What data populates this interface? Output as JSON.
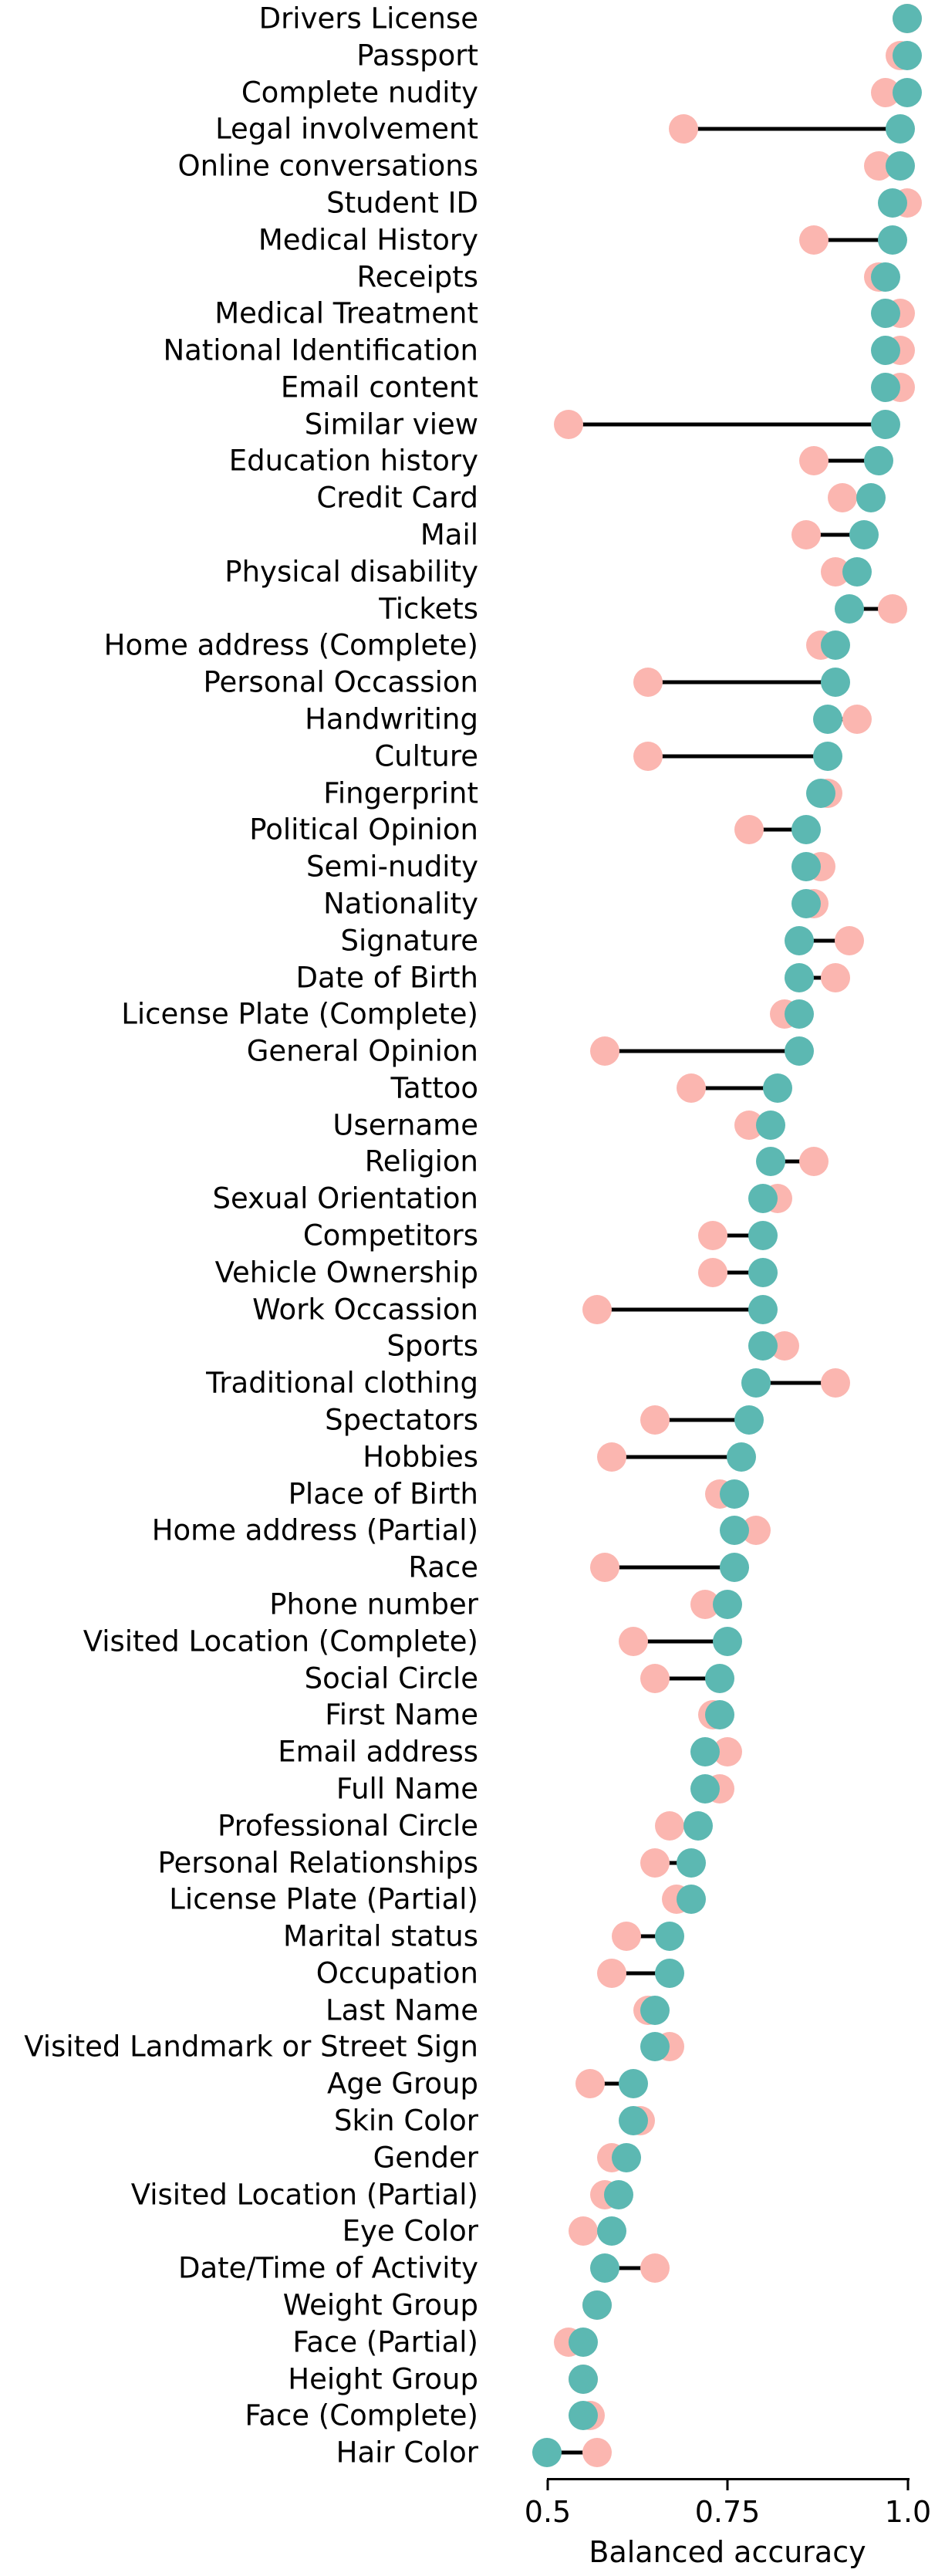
{
  "chart_data": {
    "type": "scatter",
    "variant": "dumbbell-dot-plot",
    "title": "",
    "xlabel": "Balanced accuracy",
    "ylabel": "",
    "grid": false,
    "legend_position": "none",
    "xtick_labels": [
      "0.5",
      "0.75",
      "1.0"
    ],
    "xtick_values": [
      0.5,
      0.75,
      1.0
    ],
    "xlim": [
      0.5,
      1.0
    ],
    "colors": {
      "teal_series": "#5cb8b2",
      "pink_series": "#fbb6b0",
      "connector": "#000000"
    },
    "categories": [
      "Drivers License",
      "Passport",
      "Complete nudity",
      "Legal involvement",
      "Online conversations",
      "Student ID",
      "Medical History",
      "Receipts",
      "Medical Treatment",
      "National Identification",
      "Email content",
      "Similar view",
      "Education history",
      "Credit Card",
      "Mail",
      "Physical disability",
      "Tickets",
      "Home address (Complete)",
      "Personal Occassion",
      "Handwriting",
      "Culture",
      "Fingerprint",
      "Political Opinion",
      "Semi-nudity",
      "Nationality",
      "Signature",
      "Date of Birth",
      "License Plate (Complete)",
      "General Opinion",
      "Tattoo",
      "Username",
      "Religion",
      "Sexual Orientation",
      "Competitors",
      "Vehicle Ownership",
      "Work Occassion",
      "Sports",
      "Traditional clothing",
      "Spectators",
      "Hobbies",
      "Place of Birth",
      "Home address (Partial)",
      "Race",
      "Phone number",
      "Visited Location (Complete)",
      "Social Circle",
      "First Name",
      "Email address",
      "Full Name",
      "Professional Circle",
      "Personal Relationships",
      "License Plate (Partial)",
      "Marital status",
      "Occupation",
      "Last Name",
      "Visited Landmark or Street Sign",
      "Age Group",
      "Skin Color",
      "Gender",
      "Visited Location (Partial)",
      "Eye Color",
      "Date/Time of Activity",
      "Weight Group",
      "Face (Partial)",
      "Height Group",
      "Face (Complete)",
      "Hair Color"
    ],
    "series": [
      {
        "name": "teal-front-dots",
        "color": "#5cb8b2",
        "values": [
          1.0,
          1.0,
          1.0,
          0.99,
          0.99,
          0.98,
          0.98,
          0.97,
          0.97,
          0.97,
          0.97,
          0.97,
          0.96,
          0.95,
          0.94,
          0.93,
          0.92,
          0.9,
          0.9,
          0.89,
          0.89,
          0.88,
          0.86,
          0.86,
          0.86,
          0.85,
          0.85,
          0.85,
          0.85,
          0.82,
          0.81,
          0.81,
          0.8,
          0.8,
          0.8,
          0.8,
          0.8,
          0.79,
          0.78,
          0.77,
          0.76,
          0.76,
          0.76,
          0.75,
          0.75,
          0.74,
          0.74,
          0.72,
          0.72,
          0.71,
          0.7,
          0.7,
          0.67,
          0.67,
          0.65,
          0.65,
          0.62,
          0.62,
          0.61,
          0.6,
          0.59,
          0.58,
          0.57,
          0.55,
          0.55,
          0.55,
          0.5
        ]
      },
      {
        "name": "pink-back-dots",
        "color": "#fbb6b0",
        "values": [
          1.0,
          0.99,
          0.97,
          0.69,
          0.96,
          1.0,
          0.87,
          0.96,
          0.99,
          0.99,
          0.99,
          0.53,
          0.87,
          0.91,
          0.86,
          0.9,
          0.98,
          0.88,
          0.64,
          0.93,
          0.64,
          0.89,
          0.78,
          0.88,
          0.87,
          0.92,
          0.9,
          0.83,
          0.58,
          0.7,
          0.78,
          0.87,
          0.82,
          0.73,
          0.73,
          0.57,
          0.83,
          0.9,
          0.65,
          0.59,
          0.74,
          0.79,
          0.58,
          0.72,
          0.62,
          0.65,
          0.73,
          0.75,
          0.74,
          0.67,
          0.65,
          0.68,
          0.61,
          0.59,
          0.64,
          0.67,
          0.56,
          0.63,
          0.59,
          0.58,
          0.55,
          0.65,
          0.57,
          0.53,
          0.55,
          0.56,
          0.57
        ]
      }
    ]
  }
}
